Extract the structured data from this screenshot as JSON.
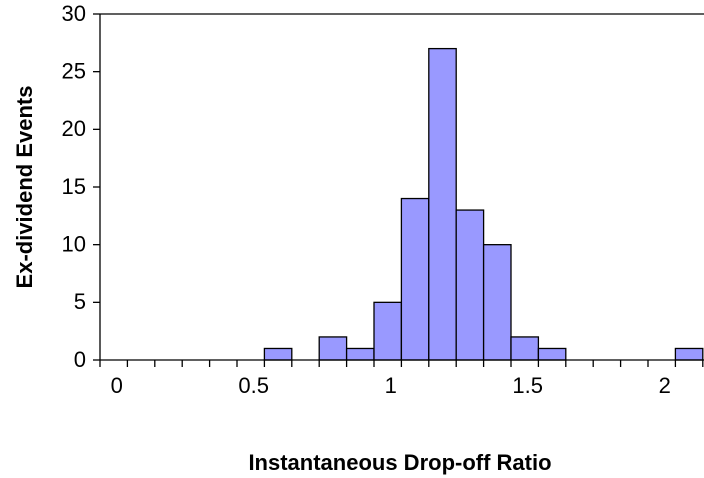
{
  "chart_data": {
    "type": "bar",
    "xlabel": "Instantaneous Drop-off Ratio",
    "ylabel": "Ex-dividend Events",
    "categories": [
      "0",
      null,
      null,
      null,
      null,
      "0.5",
      null,
      null,
      null,
      null,
      "1",
      null,
      null,
      null,
      null,
      "1.5",
      null,
      null,
      null,
      null,
      "2",
      null
    ],
    "values": [
      0,
      0,
      0,
      0,
      0,
      0,
      1,
      0,
      2,
      1,
      5,
      14,
      27,
      13,
      10,
      2,
      1,
      0,
      0,
      0,
      0,
      1
    ],
    "color": "#9999ff",
    "ylim": [
      0,
      30
    ],
    "yticks": [
      0,
      5,
      10,
      15,
      20,
      25,
      30
    ]
  }
}
